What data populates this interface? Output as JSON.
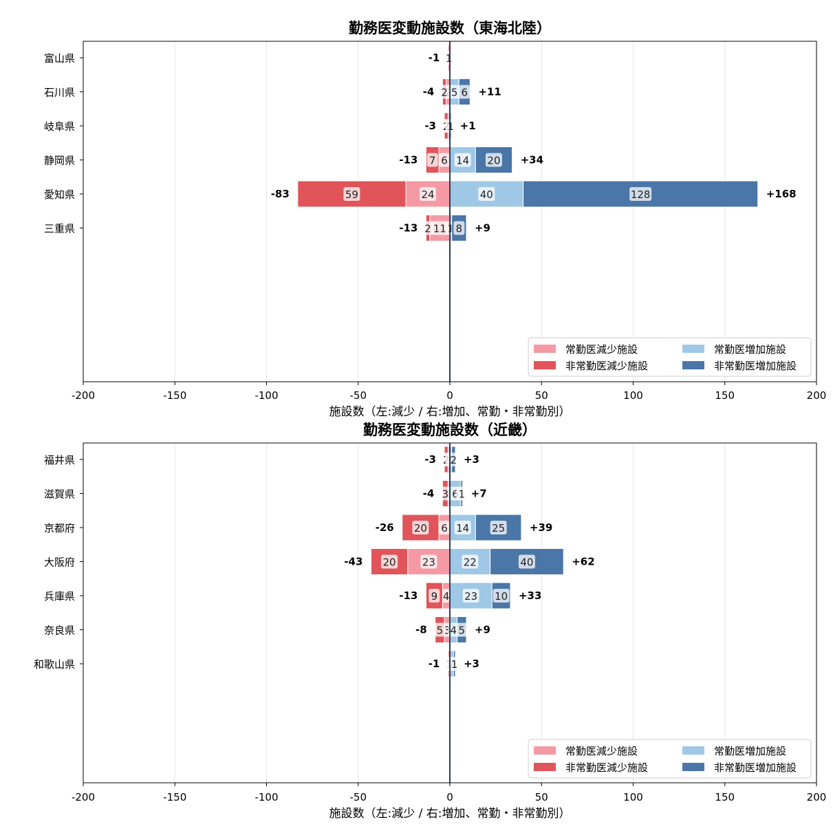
{
  "colors": {
    "regular_decrease": "#f59aa4",
    "nonregular_decrease": "#e0545a",
    "regular_increase": "#9fc7e6",
    "nonregular_increase": "#4a76a8",
    "zero_line": "#2f3e55",
    "grid": "#e6e6e6"
  },
  "legend": {
    "items": [
      {
        "label": "常勤医減少施設",
        "color_key": "regular_decrease"
      },
      {
        "label": "非常勤医減少施設",
        "color_key": "nonregular_decrease"
      },
      {
        "label": "常勤医増加施設",
        "color_key": "regular_increase"
      },
      {
        "label": "非常勤医増加施設",
        "color_key": "nonregular_increase"
      }
    ]
  },
  "chart_data": [
    {
      "type": "bar",
      "orientation": "horizontal-diverging",
      "title": "勤務医変動施設数（東海北陸）",
      "xlabel": "施設数（左:減少 / 右:増加、常勤・非常勤別）",
      "xlim": [
        -200,
        200
      ],
      "xticks": [
        -200,
        -150,
        -100,
        -50,
        0,
        50,
        100,
        150,
        200
      ],
      "grid": "x",
      "legend_position": "lower-right",
      "categories": [
        "富山県",
        "石川県",
        "岐阜県",
        "静岡県",
        "愛知県",
        "三重県"
      ],
      "series": [
        {
          "name": "常勤医減少施設",
          "values": [
            -1,
            -2,
            -1,
            -6,
            -24,
            -11
          ]
        },
        {
          "name": "非常勤医減少施設",
          "values": [
            0,
            -2,
            -2,
            -7,
            -59,
            -2
          ]
        },
        {
          "name": "常勤医増加施設",
          "values": [
            0,
            5,
            1,
            14,
            40,
            1
          ]
        },
        {
          "name": "非常勤医増加施設",
          "values": [
            0,
            6,
            0,
            20,
            128,
            8
          ]
        }
      ],
      "totals_decrease": [
        "-1",
        "-4",
        "-3",
        "-13",
        "-83",
        "-13"
      ],
      "totals_increase": [
        "",
        "+11",
        "+1",
        "+34",
        "+168",
        "+9"
      ]
    },
    {
      "type": "bar",
      "orientation": "horizontal-diverging",
      "title": "勤務医変動施設数（近畿）",
      "xlabel": "施設数（左:減少 / 右:増加、常勤・非常勤別）",
      "xlim": [
        -200,
        200
      ],
      "xticks": [
        -200,
        -150,
        -100,
        -50,
        0,
        50,
        100,
        150,
        200
      ],
      "grid": "x",
      "legend_position": "lower-right",
      "categories": [
        "福井県",
        "滋賀県",
        "京都府",
        "大阪府",
        "兵庫県",
        "奈良県",
        "和歌山県"
      ],
      "series": [
        {
          "name": "常勤医減少施設",
          "values": [
            -1,
            -1,
            -6,
            -23,
            -4,
            -3,
            -1
          ]
        },
        {
          "name": "非常勤医減少施設",
          "values": [
            -2,
            -3,
            -20,
            -20,
            -9,
            -5,
            0
          ]
        },
        {
          "name": "常勤医増加施設",
          "values": [
            1,
            6,
            14,
            22,
            23,
            4,
            2
          ]
        },
        {
          "name": "非常勤医増加施設",
          "values": [
            2,
            1,
            25,
            40,
            10,
            5,
            1
          ]
        }
      ],
      "totals_decrease": [
        "-3",
        "-4",
        "-26",
        "-43",
        "-13",
        "-8",
        "-1"
      ],
      "totals_increase": [
        "+3",
        "+7",
        "+39",
        "+62",
        "+33",
        "+9",
        "+3"
      ]
    }
  ]
}
